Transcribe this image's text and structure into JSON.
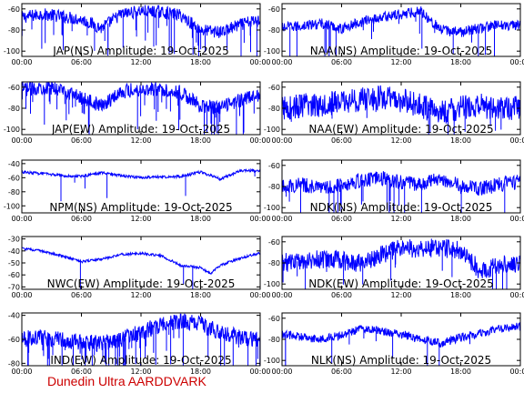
{
  "footer": "Dunedin Ultra AARDDVARK",
  "colors": {
    "signal": "#0000ff",
    "axes": "#000000",
    "footer": "#cc0000"
  },
  "chart_data": [
    {
      "type": "line",
      "title": "JAP(NS) Amplitude: 19-Oct-2025",
      "x_ticks": [
        "00:00",
        "06:00",
        "12:00",
        "18:00",
        "00:00"
      ],
      "y_ticks": [
        -60,
        -80,
        -100
      ],
      "ylim": [
        -105,
        -55
      ],
      "noise": 6,
      "spikes": 40,
      "x": [
        0,
        2,
        4,
        6,
        8,
        10,
        12,
        14,
        16,
        18,
        20,
        22,
        24
      ],
      "values": [
        -68,
        -65,
        -67,
        -70,
        -78,
        -65,
        -62,
        -63,
        -66,
        -80,
        -82,
        -75,
        -70
      ]
    },
    {
      "type": "line",
      "title": "NAA(NS) Amplitude: 19-Oct-2025",
      "x_ticks": [
        "00:00",
        "06:00",
        "12:00",
        "18:00",
        "00:00"
      ],
      "y_ticks": [
        -60,
        -80,
        -100
      ],
      "ylim": [
        -105,
        -55
      ],
      "noise": 5,
      "spikes": 20,
      "x": [
        0,
        2,
        4,
        6,
        8,
        10,
        12,
        14,
        16,
        18,
        20,
        22,
        24
      ],
      "values": [
        -78,
        -76,
        -74,
        -79,
        -72,
        -68,
        -65,
        -62,
        -80,
        -82,
        -78,
        -75,
        -76
      ]
    },
    {
      "type": "line",
      "title": "JAP(EW) Amplitude: 19-Oct-2025",
      "x_ticks": [
        "00:00",
        "06:00",
        "12:00",
        "18:00",
        "00:00"
      ],
      "y_ticks": [
        -60,
        -80,
        -100
      ],
      "ylim": [
        -105,
        -55
      ],
      "noise": 7,
      "spikes": 45,
      "x": [
        0,
        2,
        4,
        6,
        8,
        10,
        12,
        14,
        16,
        18,
        20,
        22,
        24
      ],
      "values": [
        -62,
        -60,
        -62,
        -70,
        -78,
        -64,
        -62,
        -62,
        -65,
        -78,
        -80,
        -72,
        -68
      ]
    },
    {
      "type": "line",
      "title": "NAA(EW) Amplitude: 19-Oct-2025",
      "x_ticks": [
        "00:00",
        "06:00",
        "12:00",
        "18:00",
        "00:00"
      ],
      "y_ticks": [
        -60,
        -80,
        -100
      ],
      "ylim": [
        -105,
        -55
      ],
      "noise": 12,
      "spikes": 15,
      "x": [
        0,
        2,
        4,
        6,
        8,
        10,
        12,
        14,
        16,
        18,
        20,
        22,
        24
      ],
      "values": [
        -80,
        -78,
        -76,
        -74,
        -72,
        -70,
        -73,
        -78,
        -84,
        -80,
        -78,
        -80,
        -79
      ]
    },
    {
      "type": "line",
      "title": "NPM(NS) Amplitude: 19-Oct-2025",
      "x_ticks": [
        "00:00",
        "06:00",
        "12:00",
        "18:00",
        "00:00"
      ],
      "y_ticks": [
        -40,
        -60,
        -80,
        -100
      ],
      "ylim": [
        -110,
        -35
      ],
      "noise": 2,
      "spikes": 6,
      "x": [
        0,
        2,
        4,
        6,
        8,
        10,
        12,
        14,
        16,
        18,
        20,
        22,
        24
      ],
      "values": [
        -52,
        -54,
        -57,
        -58,
        -53,
        -57,
        -60,
        -59,
        -58,
        -52,
        -62,
        -50,
        -50
      ]
    },
    {
      "type": "line",
      "title": "NDK(NS) Amplitude: 19-Oct-2025",
      "x_ticks": [
        "00:00",
        "06:00",
        "12:00",
        "18:00",
        "00:00"
      ],
      "y_ticks": [
        -60,
        -80,
        -100
      ],
      "ylim": [
        -105,
        -55
      ],
      "noise": 7,
      "spikes": 20,
      "x": [
        0,
        2,
        4,
        6,
        8,
        10,
        12,
        14,
        16,
        18,
        20,
        22,
        24
      ],
      "values": [
        -80,
        -78,
        -82,
        -78,
        -74,
        -72,
        -76,
        -78,
        -72,
        -80,
        -82,
        -78,
        -75
      ]
    },
    {
      "type": "line",
      "title": "NWC(EW) Amplitude: 19-Oct-2025",
      "x_ticks": [
        "00:00",
        "06:00",
        "12:00",
        "18:00",
        "00:00"
      ],
      "y_ticks": [
        -30,
        -40,
        -50,
        -60,
        -70
      ],
      "ylim": [
        -72,
        -28
      ],
      "noise": 1,
      "spikes": 3,
      "x": [
        0,
        2,
        4,
        6,
        8,
        10,
        12,
        14,
        16,
        18,
        19,
        20,
        22,
        24
      ],
      "values": [
        -38,
        -40,
        -44,
        -49,
        -47,
        -43,
        -42,
        -44,
        -52,
        -54,
        -59,
        -52,
        -46,
        -42
      ]
    },
    {
      "type": "line",
      "title": "NDK(EW) Amplitude: 19-Oct-2025",
      "x_ticks": [
        "00:00",
        "06:00",
        "12:00",
        "18:00",
        "00:00"
      ],
      "y_ticks": [
        -60,
        -80,
        -100
      ],
      "ylim": [
        -105,
        -55
      ],
      "noise": 9,
      "spikes": 15,
      "x": [
        0,
        2,
        4,
        6,
        8,
        10,
        12,
        14,
        16,
        18,
        20,
        22,
        24
      ],
      "values": [
        -80,
        -78,
        -76,
        -78,
        -80,
        -72,
        -66,
        -66,
        -66,
        -68,
        -88,
        -82,
        -80
      ]
    },
    {
      "type": "line",
      "title": "IND(EW) Amplitude: 19-Oct-2025",
      "x_ticks": [
        "00:00",
        "06:00",
        "12:00",
        "18:00",
        "00:00"
      ],
      "y_ticks": [
        -40,
        -60,
        -80
      ],
      "ylim": [
        -82,
        -38
      ],
      "noise": 7,
      "spikes": 55,
      "x": [
        0,
        2,
        4,
        6,
        8,
        10,
        12,
        14,
        16,
        18,
        20,
        22,
        24
      ],
      "values": [
        -60,
        -58,
        -60,
        -62,
        -64,
        -60,
        -54,
        -48,
        -45,
        -47,
        -55,
        -58,
        -60
      ]
    },
    {
      "type": "line",
      "title": "NLK(NS) Amplitude: 19-Oct-2025",
      "x_ticks": [
        "00:00",
        "06:00",
        "12:00",
        "18:00",
        "00:00"
      ],
      "y_ticks": [
        -60,
        -80,
        -100
      ],
      "ylim": [
        -105,
        -55
      ],
      "noise": 4,
      "spikes": 10,
      "x": [
        0,
        2,
        4,
        6,
        8,
        10,
        12,
        14,
        16,
        18,
        20,
        22,
        24
      ],
      "values": [
        -75,
        -78,
        -80,
        -76,
        -70,
        -72,
        -75,
        -80,
        -84,
        -78,
        -74,
        -70,
        -68
      ]
    }
  ]
}
